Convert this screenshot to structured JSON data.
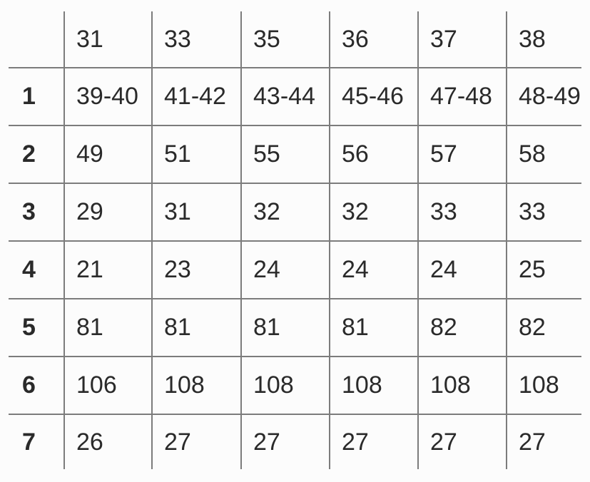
{
  "table": {
    "header": [
      "",
      "31",
      "33",
      "35",
      "36",
      "37",
      "38"
    ],
    "rows": [
      {
        "label": "1",
        "cells": [
          "39-40",
          "41-42",
          "43-44",
          "45-46",
          "47-48",
          "48-49"
        ]
      },
      {
        "label": "2",
        "cells": [
          "49",
          "51",
          "55",
          "56",
          "57",
          "58"
        ]
      },
      {
        "label": "3",
        "cells": [
          "29",
          "31",
          "32",
          "32",
          "33",
          "33"
        ]
      },
      {
        "label": "4",
        "cells": [
          "21",
          "23",
          "24",
          "24",
          "24",
          "25"
        ]
      },
      {
        "label": "5",
        "cells": [
          "81",
          "81",
          "81",
          "81",
          "82",
          "82"
        ]
      },
      {
        "label": "6",
        "cells": [
          "106",
          "108",
          "108",
          "108",
          "108",
          "108"
        ]
      },
      {
        "label": "7",
        "cells": [
          "26",
          "27",
          "27",
          "27",
          "27",
          "27"
        ]
      }
    ],
    "colors": {
      "border": "#7c7c7c",
      "text": "#2a2a2a",
      "background": "#fcfcfc"
    }
  },
  "chart_data": {
    "type": "table",
    "title": "",
    "columns": [
      "",
      "31",
      "33",
      "35",
      "36",
      "37",
      "38"
    ],
    "rows": [
      [
        "1",
        "39-40",
        "41-42",
        "43-44",
        "45-46",
        "47-48",
        "48-49"
      ],
      [
        "2",
        "49",
        "51",
        "55",
        "56",
        "57",
        "58"
      ],
      [
        "3",
        "29",
        "31",
        "32",
        "32",
        "33",
        "33"
      ],
      [
        "4",
        "21",
        "23",
        "24",
        "24",
        "24",
        "25"
      ],
      [
        "5",
        "81",
        "81",
        "81",
        "81",
        "82",
        "82"
      ],
      [
        "6",
        "106",
        "108",
        "108",
        "108",
        "108",
        "108"
      ],
      [
        "7",
        "26",
        "27",
        "27",
        "27",
        "27",
        "27"
      ]
    ],
    "layout": {
      "grid": "internal-lines-only",
      "row_label_style": "bold",
      "header_row": true
    }
  }
}
